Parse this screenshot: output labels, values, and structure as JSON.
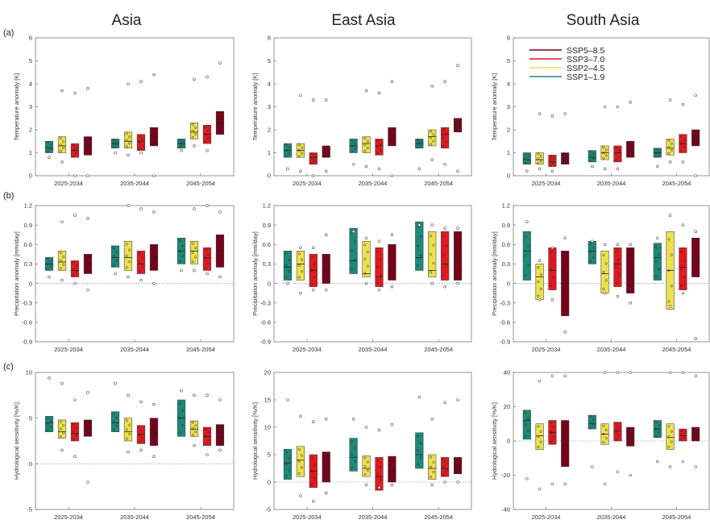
{
  "column_titles": [
    "Asia",
    "East Asia",
    "South Asia"
  ],
  "row_labels": [
    "(a)",
    "(b)",
    "(c)"
  ],
  "legend": [
    {
      "name": "SSP5–8.5",
      "color": "#7a0019"
    },
    {
      "name": "SSP3–7.0",
      "color": "#e3181f"
    },
    {
      "name": "SSP2–4.5",
      "color": "#ece04e"
    },
    {
      "name": "SSP1–1.9",
      "color": "#1b8a7a"
    }
  ],
  "series_colors": [
    "#1b8a7a",
    "#ece04e",
    "#e3181f",
    "#7a0019"
  ],
  "chart_data": [
    {
      "type": "box",
      "row": 0,
      "col": 0,
      "ylabel": "Temperature anomaly [K]",
      "ylim": [
        0,
        6
      ],
      "yticks": [
        "0",
        "1",
        "2",
        "3",
        "4",
        "5",
        "6"
      ],
      "categories": [
        "2025-2034",
        "2035-2044",
        "2045-2054"
      ],
      "boxes": [
        [
          [
            1.0,
            1.5,
            1.2
          ],
          [
            1.0,
            1.7,
            1.3
          ],
          [
            0.8,
            1.4,
            1.1
          ],
          [
            0.9,
            1.7,
            1.3
          ]
        ],
        [
          [
            1.2,
            1.6,
            1.4
          ],
          [
            1.2,
            1.9,
            1.5
          ],
          [
            1.1,
            1.8,
            1.5
          ],
          [
            1.3,
            2.1,
            1.7
          ]
        ],
        [
          [
            1.2,
            1.6,
            1.4
          ],
          [
            1.6,
            2.3,
            1.9
          ],
          [
            1.4,
            2.2,
            1.8
          ],
          [
            1.8,
            2.8,
            2.3
          ]
        ]
      ],
      "outliers": [
        [
          [
            0.8
          ],
          [
            3.7,
            0.6
          ],
          [
            3.6,
            0
          ],
          [
            3.8,
            0
          ]
        ],
        [
          [
            1.0
          ],
          [
            4.0,
            0.9
          ],
          [
            4.1,
            1.0
          ],
          [
            4.4,
            0
          ]
        ],
        [
          [
            1.1
          ],
          [
            4.2,
            1.3
          ],
          [
            4.3,
            1.1
          ],
          [
            4.9
          ]
        ]
      ]
    },
    {
      "type": "box",
      "row": 0,
      "col": 1,
      "ylabel": "Temperature anomaly [K]",
      "ylim": [
        0,
        6
      ],
      "yticks": [
        "0",
        "1",
        "2",
        "3",
        "4",
        "5",
        "6"
      ],
      "categories": [
        "2025-2034",
        "2035-2044",
        "2045-2054"
      ],
      "boxes": [
        [
          [
            0.8,
            1.4,
            1.1
          ],
          [
            0.8,
            1.4,
            1.1
          ],
          [
            0.5,
            1.0,
            0.8
          ],
          [
            0.8,
            1.3,
            1.0
          ]
        ],
        [
          [
            1.0,
            1.6,
            1.3
          ],
          [
            1.0,
            1.7,
            1.4
          ],
          [
            0.9,
            1.6,
            1.3
          ],
          [
            1.3,
            2.1,
            1.6
          ]
        ],
        [
          [
            1.2,
            1.6,
            1.4
          ],
          [
            1.3,
            2.0,
            1.7
          ],
          [
            1.2,
            2.1,
            1.8
          ],
          [
            1.9,
            2.5,
            2.2
          ]
        ]
      ],
      "outliers": [
        [
          [
            0.3
          ],
          [
            3.5,
            0.2
          ],
          [
            3.3,
            0
          ],
          [
            3.3,
            0.2
          ]
        ],
        [
          [
            0.5
          ],
          [
            3.7,
            0.4
          ],
          [
            3.6,
            0.3
          ],
          [
            4.1,
            0
          ]
        ],
        [
          [
            0.3
          ],
          [
            3.9,
            0.7
          ],
          [
            4.1,
            0.5
          ],
          [
            4.8,
            0.2
          ]
        ]
      ]
    },
    {
      "type": "box",
      "row": 0,
      "col": 2,
      "ylabel": "Temperature anomaly [K]",
      "ylim": [
        0,
        6
      ],
      "yticks": [
        "0",
        "1",
        "2",
        "3",
        "4",
        "5",
        "6"
      ],
      "categories": [
        "2025-2034",
        "2035-2044",
        "2045-2054"
      ],
      "boxes": [
        [
          [
            0.5,
            1.0,
            0.7
          ],
          [
            0.5,
            1.0,
            0.7
          ],
          [
            0.4,
            0.9,
            0.6
          ],
          [
            0.5,
            1.0,
            0.7
          ]
        ],
        [
          [
            0.6,
            1.1,
            0.8
          ],
          [
            0.7,
            1.3,
            1.0
          ],
          [
            0.6,
            1.3,
            1.0
          ],
          [
            0.8,
            1.5,
            1.2
          ]
        ],
        [
          [
            0.8,
            1.2,
            1.0
          ],
          [
            0.9,
            1.6,
            1.2
          ],
          [
            1.0,
            1.8,
            1.4
          ],
          [
            1.3,
            2.0,
            1.6
          ]
        ]
      ],
      "outliers": [
        [
          [
            0.2
          ],
          [
            2.7,
            0.3
          ],
          [
            2.6,
            0.2
          ],
          [
            2.7
          ]
        ],
        [
          [
            0.4
          ],
          [
            3.0,
            0.3
          ],
          [
            3.0,
            0.3
          ],
          [
            3.2
          ]
        ],
        [
          [
            0.4
          ],
          [
            3.3,
            0.6
          ],
          [
            3.1,
            0.6
          ],
          [
            3.5,
            0
          ]
        ]
      ]
    },
    {
      "type": "box",
      "row": 1,
      "col": 0,
      "ylabel": "Precipitation anomaly [mm/day]",
      "ylim": [
        -0.9,
        1.2
      ],
      "yticks": [
        "-0.9",
        "-0.6",
        "-0.3",
        "0",
        "0.3",
        "0.6",
        "0.9",
        "1.2"
      ],
      "categories": [
        "2025-2034",
        "2035-2044",
        "2045-2054"
      ],
      "boxes": [
        [
          [
            0.2,
            0.4,
            0.3
          ],
          [
            0.2,
            0.5,
            0.33
          ],
          [
            0.1,
            0.35,
            0.2
          ],
          [
            0.15,
            0.45,
            0.3
          ]
        ],
        [
          [
            0.25,
            0.58,
            0.4
          ],
          [
            0.2,
            0.65,
            0.4
          ],
          [
            0.15,
            0.5,
            0.3
          ],
          [
            0.2,
            0.6,
            0.4
          ]
        ],
        [
          [
            0.3,
            0.7,
            0.5
          ],
          [
            0.3,
            0.65,
            0.5
          ],
          [
            0.2,
            0.55,
            0.4
          ],
          [
            0.25,
            0.75,
            0.5
          ]
        ]
      ],
      "outliers": [
        [
          [
            0.1
          ],
          [
            0.95,
            0.05
          ],
          [
            1.05,
            0
          ],
          [
            1.0,
            -0.1
          ]
        ],
        [
          [
            0.15
          ],
          [
            1.2,
            0.1
          ],
          [
            1.15,
            0.05
          ],
          [
            1.1,
            0
          ]
        ],
        [
          [
            0.2
          ],
          [
            1.15,
            0.2
          ],
          [
            1.2,
            0.15
          ],
          [
            1.1,
            0.1
          ]
        ]
      ]
    },
    {
      "type": "box",
      "row": 1,
      "col": 1,
      "ylabel": "Precipitation anomaly [mm/day]",
      "ylim": [
        -0.9,
        1.2
      ],
      "yticks": [
        "-0.9",
        "-0.6",
        "-0.3",
        "0",
        "0.3",
        "0.6",
        "0.9",
        "1.2"
      ],
      "categories": [
        "2025-2034",
        "2035-2044",
        "2045-2054"
      ],
      "boxes": [
        [
          [
            0.05,
            0.5,
            0.25
          ],
          [
            0.05,
            0.5,
            0.3
          ],
          [
            -0.05,
            0.45,
            0.2
          ],
          [
            0.0,
            0.45,
            0.2
          ]
        ],
        [
          [
            0.15,
            0.85,
            0.35
          ],
          [
            0.1,
            0.65,
            0.15
          ],
          [
            -0.05,
            0.55,
            0.1
          ],
          [
            0.05,
            0.6,
            0.2
          ]
        ],
        [
          [
            0.2,
            0.95,
            0.4
          ],
          [
            0.1,
            0.8,
            0.2
          ],
          [
            0.05,
            0.8,
            0.3
          ],
          [
            0.05,
            0.8,
            0.4
          ]
        ]
      ],
      "outliers": [
        [
          [
            0.0
          ],
          [
            0.55,
            -0.15
          ],
          [
            0.55,
            -0.1
          ],
          [
            0.75,
            -0.1
          ]
        ],
        [
          [
            0.8
          ],
          [
            0.7,
            0.0
          ],
          [
            0.65,
            -0.1
          ],
          [
            0.75,
            -0.05
          ]
        ],
        [
          [
            0.9
          ],
          [
            0.9,
            0.0
          ],
          [
            0.85,
            -0.05
          ],
          [
            0.85,
            0.0
          ]
        ]
      ]
    },
    {
      "type": "box",
      "row": 1,
      "col": 2,
      "ylabel": "Precipitation anomaly [mm/day]",
      "ylim": [
        -0.9,
        1.2
      ],
      "yticks": [
        "-0.9",
        "-0.6",
        "-0.3",
        "0",
        "0.3",
        "0.6",
        "0.9",
        "1.2"
      ],
      "categories": [
        "2025-2034",
        "2035-2044",
        "2045-2054"
      ],
      "boxes": [
        [
          [
            0.05,
            0.8,
            0.5
          ],
          [
            -0.25,
            0.3,
            0.1
          ],
          [
            -0.1,
            0.55,
            0.2
          ],
          [
            -0.5,
            0.5,
            0.1
          ]
        ],
        [
          [
            0.3,
            0.65,
            0.5
          ],
          [
            -0.15,
            0.5,
            0.15
          ],
          [
            -0.05,
            0.55,
            0.3
          ],
          [
            -0.15,
            0.55,
            0.1
          ]
        ],
        [
          [
            0.05,
            0.62,
            0.4
          ],
          [
            -0.4,
            0.8,
            0.2
          ],
          [
            -0.1,
            0.55,
            0.25
          ],
          [
            0.1,
            0.7,
            0.4
          ]
        ]
      ],
      "outliers": [
        [
          [
            0.95
          ],
          [
            0.35,
            -0.25
          ],
          [
            0.55,
            -0.25
          ],
          [
            0.7,
            -0.75
          ]
        ],
        [
          [
            0.65
          ],
          [
            0.6,
            -0.15
          ],
          [
            0.6,
            -0.2
          ],
          [
            0.6,
            -0.3
          ]
        ],
        [
          [
            0.7
          ],
          [
            1.05,
            -0.35
          ],
          [
            0.9,
            -0.15
          ],
          [
            0.8,
            -0.85
          ]
        ]
      ]
    },
    {
      "type": "box",
      "row": 2,
      "col": 0,
      "ylabel": "Hydrological sensitivity [%/K]",
      "ylim": [
        -5,
        10
      ],
      "yticks": [
        "-5",
        "0",
        "5",
        "10"
      ],
      "categories": [
        "2025-2034",
        "2035-2044",
        "2045-2054"
      ],
      "boxes": [
        [
          [
            3.5,
            5.2,
            4.5
          ],
          [
            2.8,
            4.8,
            3.5
          ],
          [
            2.5,
            4.5,
            3.3
          ],
          [
            3.0,
            4.8,
            3.8
          ]
        ],
        [
          [
            3.5,
            5.7,
            4.5
          ],
          [
            2.5,
            5.0,
            3.5
          ],
          [
            2.2,
            4.2,
            3.2
          ],
          [
            2.0,
            5.0,
            3.3
          ]
        ],
        [
          [
            3.0,
            7.0,
            5.0
          ],
          [
            3.0,
            4.7,
            3.8
          ],
          [
            2.0,
            4.0,
            3.0
          ],
          [
            2.0,
            4.3,
            3.5
          ]
        ]
      ],
      "outliers": [
        [
          [
            9.4
          ],
          [
            8.8,
            1.5
          ],
          [
            7.0,
            0.8
          ],
          [
            7.8,
            -2.0
          ]
        ],
        [
          [
            8.8
          ],
          [
            7.5,
            1.3
          ],
          [
            6.8,
            1.5
          ],
          [
            6.5,
            0.8
          ]
        ],
        [
          [
            8.0
          ],
          [
            7.5,
            2.0
          ],
          [
            7.5,
            1.0
          ],
          [
            7.0,
            1.5
          ]
        ]
      ]
    },
    {
      "type": "box",
      "row": 2,
      "col": 1,
      "ylabel": "Hydrological sensitivity [%/K]",
      "ylim": [
        -5,
        20
      ],
      "yticks": [
        "-5",
        "0",
        "5",
        "10",
        "15",
        "20"
      ],
      "categories": [
        "2025-2034",
        "2035-2044",
        "2045-2054"
      ],
      "boxes": [
        [
          [
            0.5,
            6.0,
            3.5
          ],
          [
            1.0,
            6.5,
            4.0
          ],
          [
            -1.0,
            5.0,
            2.0
          ],
          [
            0.0,
            5.5,
            2.5
          ]
        ],
        [
          [
            2.0,
            8.0,
            4.5
          ],
          [
            1.0,
            4.8,
            2.5
          ],
          [
            -1.5,
            4.5,
            1.0
          ],
          [
            0.0,
            4.7,
            2.0
          ]
        ],
        [
          [
            2.5,
            9.0,
            5.0
          ],
          [
            0.5,
            5.0,
            2.5
          ],
          [
            1.0,
            4.5,
            2.5
          ],
          [
            1.5,
            4.5,
            2.8
          ]
        ]
      ],
      "outliers": [
        [
          [
            15.0
          ],
          [
            12.0,
            -2.5
          ],
          [
            11.0,
            -3.5
          ],
          [
            11.5,
            -2.0
          ]
        ],
        [
          [
            11.5
          ],
          [
            10.0,
            -0.5
          ],
          [
            9.5,
            -1.0
          ],
          [
            10.5,
            -0.5
          ]
        ],
        [
          [
            15.5
          ],
          [
            11.5,
            -0.5
          ],
          [
            14.5,
            0.0
          ],
          [
            15.0,
            0.0
          ]
        ]
      ]
    },
    {
      "type": "box",
      "row": 2,
      "col": 2,
      "ylabel": "Hydrological sensitivity [%/K]",
      "ylim": [
        -40,
        40
      ],
      "yticks": [
        "-40",
        "-20",
        "0",
        "20",
        "40"
      ],
      "categories": [
        "2025-2034",
        "2035-2044",
        "2045-2054"
      ],
      "boxes": [
        [
          [
            1,
            18,
            12
          ],
          [
            -5,
            10,
            3
          ],
          [
            -2,
            12,
            5
          ],
          [
            -15,
            12,
            2
          ]
        ],
        [
          [
            7,
            15,
            10
          ],
          [
            -2,
            10,
            4
          ],
          [
            0,
            11,
            6
          ],
          [
            -3,
            8,
            2
          ]
        ],
        [
          [
            2,
            12,
            7
          ],
          [
            -5,
            10,
            2
          ],
          [
            0,
            7,
            3
          ],
          [
            0,
            8,
            4
          ]
        ]
      ],
      "outliers": [
        [
          [
            -22
          ],
          [
            35,
            -28
          ],
          [
            38,
            -25
          ],
          [
            38,
            -25
          ]
        ],
        [
          [
            -15
          ],
          [
            40,
            -25
          ],
          [
            45,
            -18
          ],
          [
            40,
            -20
          ]
        ],
        [
          [
            -12
          ],
          [
            45,
            -15
          ],
          [
            40,
            -12
          ],
          [
            38,
            -15
          ]
        ]
      ]
    }
  ]
}
